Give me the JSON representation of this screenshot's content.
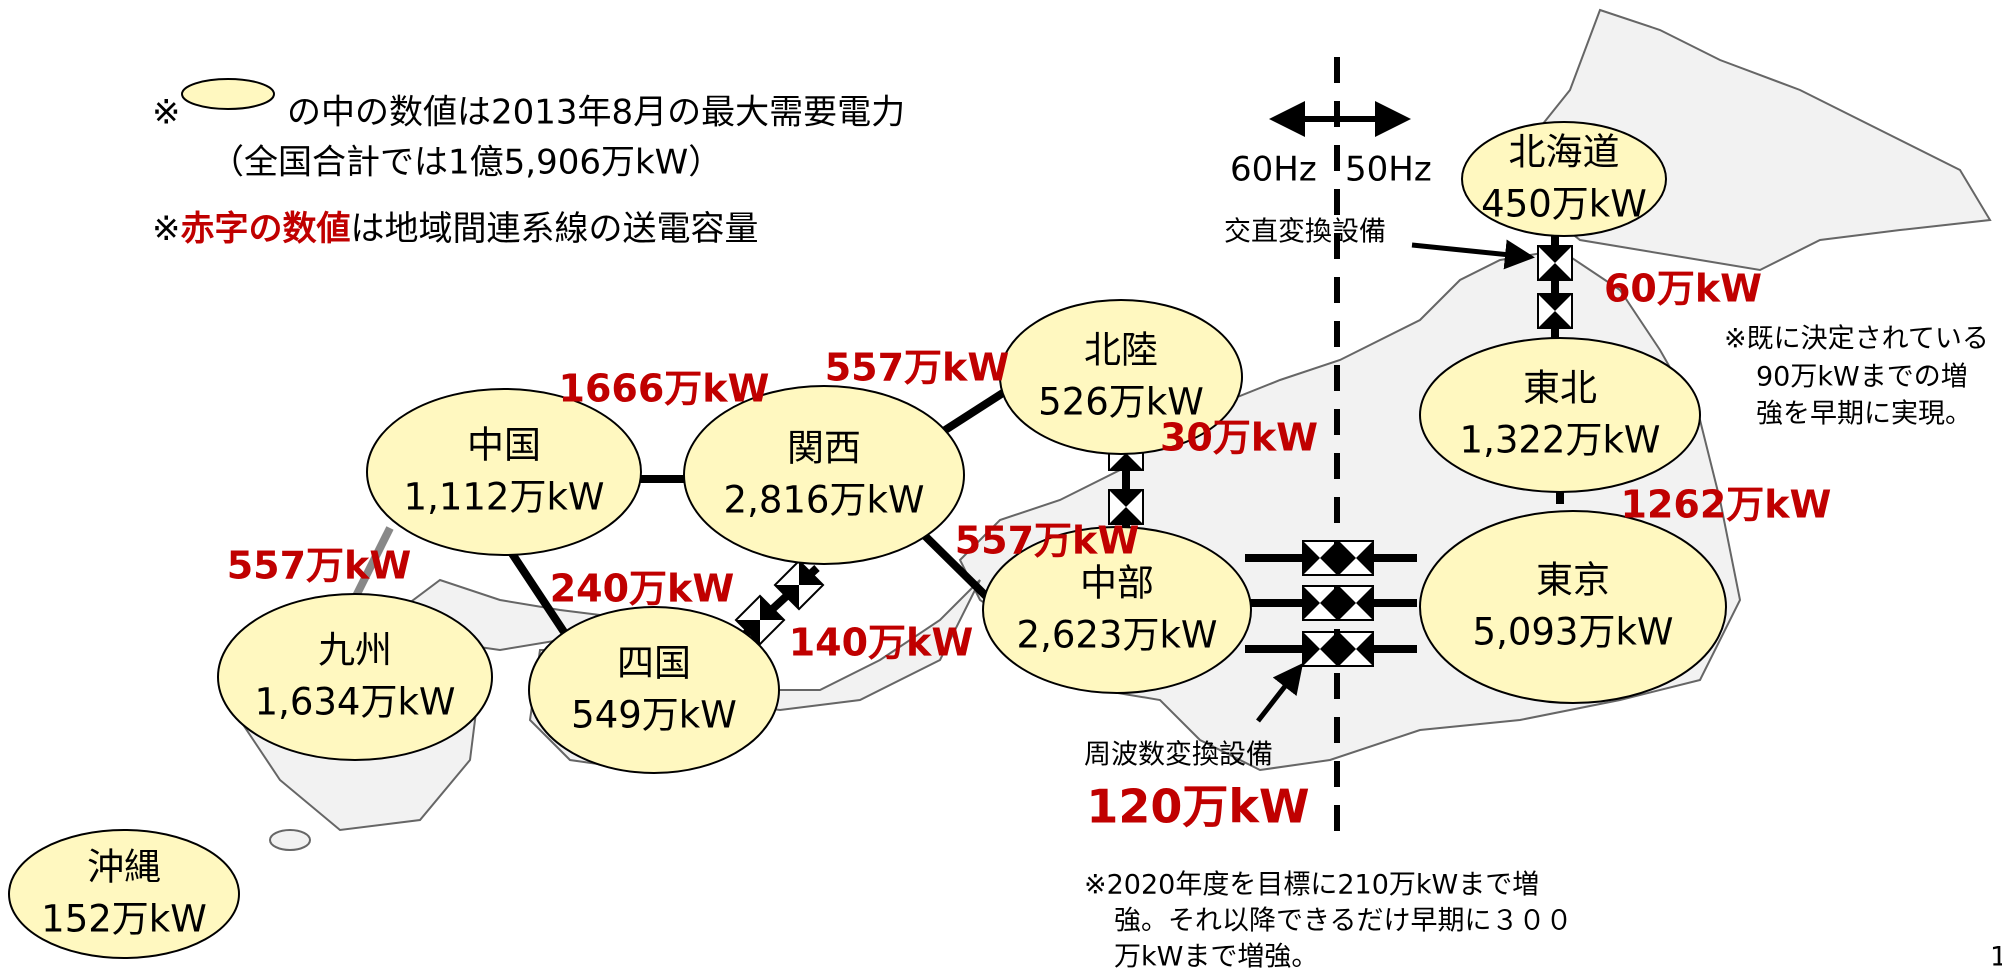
{
  "notes": {
    "legend_mark": "※",
    "legend_text": "の中の数値は2013年8月の最大需要電力",
    "legend_total": "（全国合計では1億5,906万kW）",
    "red_prefix": "※",
    "red_word": "赤字の数値",
    "red_text": "は地域間連系線の送電容量"
  },
  "frequency": {
    "west": "60Hz",
    "east": "50Hz"
  },
  "nodes": [
    {
      "name": "北海道",
      "demand": "450万kW"
    },
    {
      "name": "東北",
      "demand": "1,322万kW"
    },
    {
      "name": "東京",
      "demand": "5,093万kW"
    },
    {
      "name": "中部",
      "demand": "2,623万kW"
    },
    {
      "name": "北陸",
      "demand": "526万kW"
    },
    {
      "name": "関西",
      "demand": "2,816万kW"
    },
    {
      "name": "中国",
      "demand": "1,112万kW"
    },
    {
      "name": "九州",
      "demand": "1,634万kW"
    },
    {
      "name": "四国",
      "demand": "549万kW"
    },
    {
      "name": "沖縄",
      "demand": "152万kW"
    }
  ],
  "links": [
    {
      "label": "1666万kW"
    },
    {
      "label": "557万kW"
    },
    {
      "label": "557万kW"
    },
    {
      "label": "240万kW"
    },
    {
      "label": "140万kW"
    },
    {
      "label": "557万kW"
    },
    {
      "label": "30万kW"
    },
    {
      "label": "60万kW"
    },
    {
      "label": "1262万kW"
    },
    {
      "label": "120万kW"
    }
  ],
  "annotations": {
    "ac_dc": "交直変換設備",
    "freq_conv": "周波数変換設備",
    "hokkaido_note": [
      "※既に決定されている",
      "90万kWまでの増",
      "強を早期に実現。"
    ],
    "freq_note": [
      "※2020年度を目標に210万kWまで増",
      "強。それ以降できるだけ早期に３００",
      "万kWまで増強。"
    ],
    "page": "1"
  }
}
